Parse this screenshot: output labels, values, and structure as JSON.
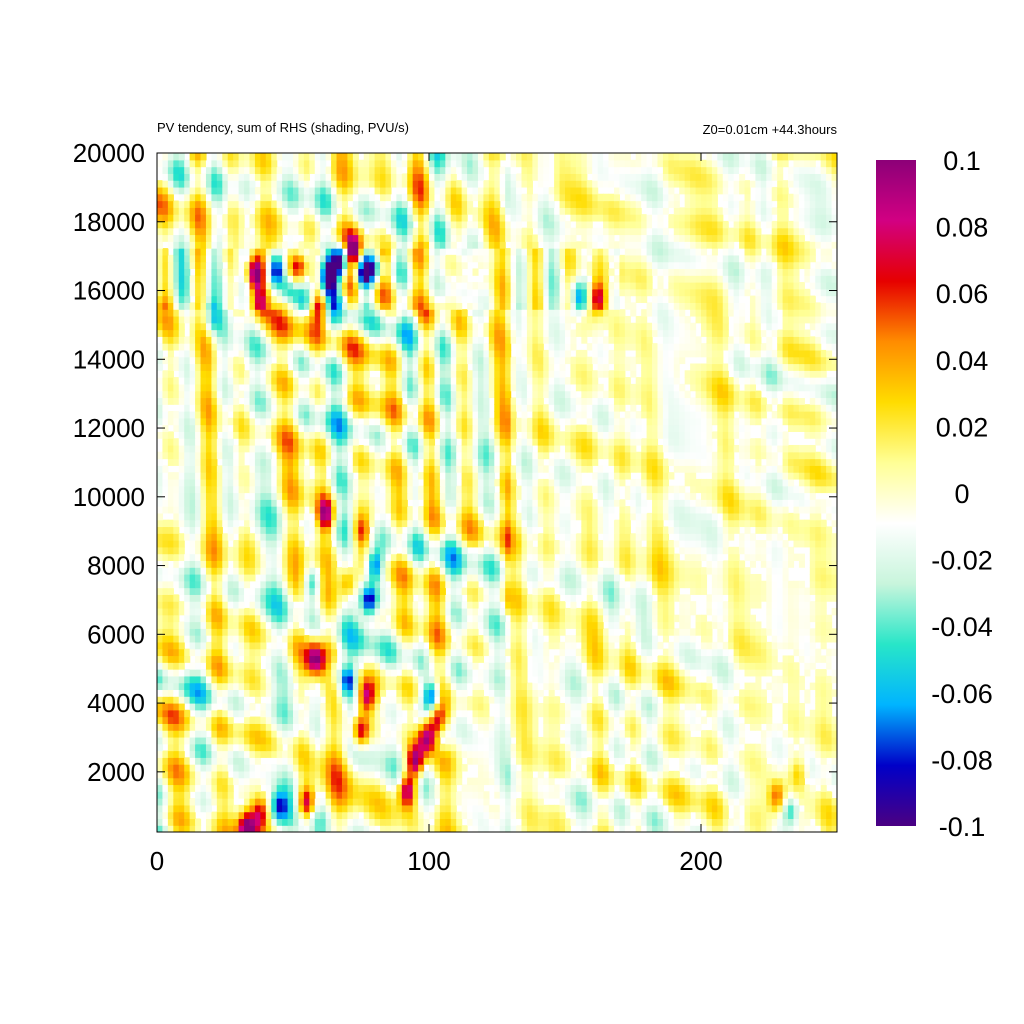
{
  "chart_data": {
    "type": "heatmap",
    "title": "PV tendency, sum of RHS (shading, PVU/s)",
    "subtitle": "Z0=0.01cm   +44.3hours",
    "xlabel": "",
    "ylabel": "",
    "xlim": [
      0,
      250
    ],
    "ylim": [
      250,
      20000
    ],
    "x_ticks": [
      0,
      100,
      200
    ],
    "y_ticks": [
      2000,
      4000,
      6000,
      8000,
      10000,
      12000,
      14000,
      16000,
      18000,
      20000
    ],
    "colorbar": {
      "min": -0.1,
      "max": 0.1,
      "ticks": [
        0.1,
        0.08,
        0.06,
        0.04,
        0.02,
        0,
        -0.02,
        -0.04,
        -0.06,
        -0.08,
        -0.1
      ],
      "tick_labels": [
        "0.1",
        "0.08",
        "0.06",
        "0.04",
        "0.02",
        "0",
        "-0.02",
        "-0.04",
        "-0.06",
        "-0.08",
        "-0.1"
      ],
      "colors": [
        "#4b0082",
        "#0000c8",
        "#00b4ff",
        "#28e6c8",
        "#c8f5dc",
        "#ffffff",
        "#ffff96",
        "#ffdc00",
        "#ff8c00",
        "#e60000",
        "#d20082",
        "#8c0078"
      ]
    },
    "grid": false,
    "features": [
      {
        "x": 92,
        "y": 1500,
        "value": 0.1
      },
      {
        "x": 95,
        "y": 2300,
        "value": 0.1
      },
      {
        "x": 99,
        "y": 3000,
        "value": 0.09
      },
      {
        "x": 103,
        "y": 3500,
        "value": 0.06
      },
      {
        "x": 101,
        "y": 4200,
        "value": -0.1
      },
      {
        "x": 105,
        "y": 3000,
        "value": -0.05
      },
      {
        "x": 75,
        "y": 3200,
        "value": 0.09
      },
      {
        "x": 77,
        "y": 4200,
        "value": 0.08
      },
      {
        "x": 70,
        "y": 4700,
        "value": -0.09
      },
      {
        "x": 65,
        "y": 5000,
        "value": -0.05
      },
      {
        "x": 58,
        "y": 5300,
        "value": 0.08
      },
      {
        "x": 78,
        "y": 7000,
        "value": -0.1
      },
      {
        "x": 80,
        "y": 8000,
        "value": -0.09
      },
      {
        "x": 75,
        "y": 9000,
        "value": 0.07
      },
      {
        "x": 70,
        "y": 7500,
        "value": 0.06
      },
      {
        "x": 62,
        "y": 9500,
        "value": 0.08
      },
      {
        "x": 57,
        "y": 7500,
        "value": -0.05
      },
      {
        "x": 55,
        "y": 1100,
        "value": 0.09
      },
      {
        "x": 45,
        "y": 1000,
        "value": -0.06
      },
      {
        "x": 38,
        "y": 800,
        "value": 0.07
      },
      {
        "x": 33,
        "y": 400,
        "value": 0.09
      },
      {
        "x": 36,
        "y": 16500,
        "value": 0.1
      },
      {
        "x": 38,
        "y": 15700,
        "value": 0.06
      },
      {
        "x": 44,
        "y": 16600,
        "value": -0.1
      },
      {
        "x": 48,
        "y": 16000,
        "value": -0.05
      },
      {
        "x": 52,
        "y": 16700,
        "value": 0.09
      },
      {
        "x": 60,
        "y": 15500,
        "value": 0.09
      },
      {
        "x": 63,
        "y": 16400,
        "value": -0.1
      },
      {
        "x": 68,
        "y": 16900,
        "value": -0.1
      },
      {
        "x": 72,
        "y": 17200,
        "value": 0.09
      },
      {
        "x": 76,
        "y": 16500,
        "value": -0.1
      },
      {
        "x": 80,
        "y": 16700,
        "value": -0.05
      },
      {
        "x": 20,
        "y": 15200,
        "value": -0.05
      },
      {
        "x": 155,
        "y": 15800,
        "value": -0.06
      },
      {
        "x": 162,
        "y": 15800,
        "value": 0.07
      },
      {
        "x": 228,
        "y": 1300,
        "value": 0.06
      },
      {
        "x": 233,
        "y": 900,
        "value": -0.05
      },
      {
        "x": 236,
        "y": 2000,
        "value": 0.03
      }
    ]
  }
}
